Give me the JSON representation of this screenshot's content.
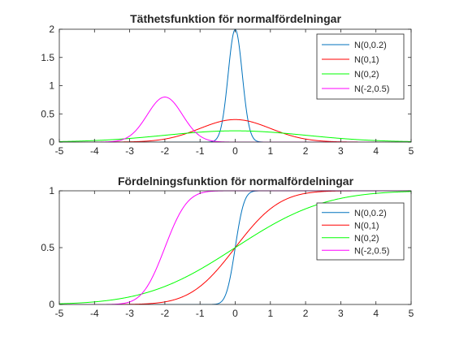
{
  "chart_data": [
    {
      "type": "line",
      "title": "Täthetsfunktion för normalfördelningar",
      "xlim": [
        -5,
        5
      ],
      "ylim": [
        0,
        2
      ],
      "xticks": [
        -5,
        -4,
        -3,
        -2,
        -1,
        0,
        1,
        2,
        3,
        4,
        5
      ],
      "yticks": [
        0,
        0.5,
        1,
        1.5,
        2
      ],
      "xtick_labels": [
        "-5",
        "-4",
        "-3",
        "-2",
        "-1",
        "0",
        "1",
        "2",
        "3",
        "4",
        "5"
      ],
      "ytick_labels": [
        "0",
        "0.5",
        "1",
        "1.5",
        "2"
      ],
      "grid": false,
      "legend_position": "top-right",
      "function": "pdf",
      "series": [
        {
          "name": "N(0,0.2)",
          "mu": 0,
          "sigma": 0.2,
          "color": "#0072BD"
        },
        {
          "name": "N(0,1)",
          "mu": 0,
          "sigma": 1,
          "color": "#ff0000"
        },
        {
          "name": "N(0,2)",
          "mu": 0,
          "sigma": 2,
          "color": "#00ff00"
        },
        {
          "name": "N(-2,0.5)",
          "mu": -2,
          "sigma": 0.5,
          "color": "#ff00ff"
        }
      ]
    },
    {
      "type": "line",
      "title": "Fördelningsfunktion för normalfördelningar",
      "xlim": [
        -5,
        5
      ],
      "ylim": [
        0,
        1
      ],
      "xticks": [
        -5,
        -4,
        -3,
        -2,
        -1,
        0,
        1,
        2,
        3,
        4,
        5
      ],
      "yticks": [
        0,
        0.5,
        1
      ],
      "xtick_labels": [
        "-5",
        "-4",
        "-3",
        "-2",
        "-1",
        "0",
        "1",
        "2",
        "3",
        "4",
        "5"
      ],
      "ytick_labels": [
        "0",
        "0.5",
        "1"
      ],
      "grid": false,
      "legend_position": "right",
      "function": "cdf",
      "series": [
        {
          "name": "N(0,0.2)",
          "mu": 0,
          "sigma": 0.2,
          "color": "#0072BD"
        },
        {
          "name": "N(0,1)",
          "mu": 0,
          "sigma": 1,
          "color": "#ff0000"
        },
        {
          "name": "N(0,2)",
          "mu": 0,
          "sigma": 2,
          "color": "#00ff00"
        },
        {
          "name": "N(-2,0.5)",
          "mu": -2,
          "sigma": 0.5,
          "color": "#ff00ff"
        }
      ]
    }
  ]
}
